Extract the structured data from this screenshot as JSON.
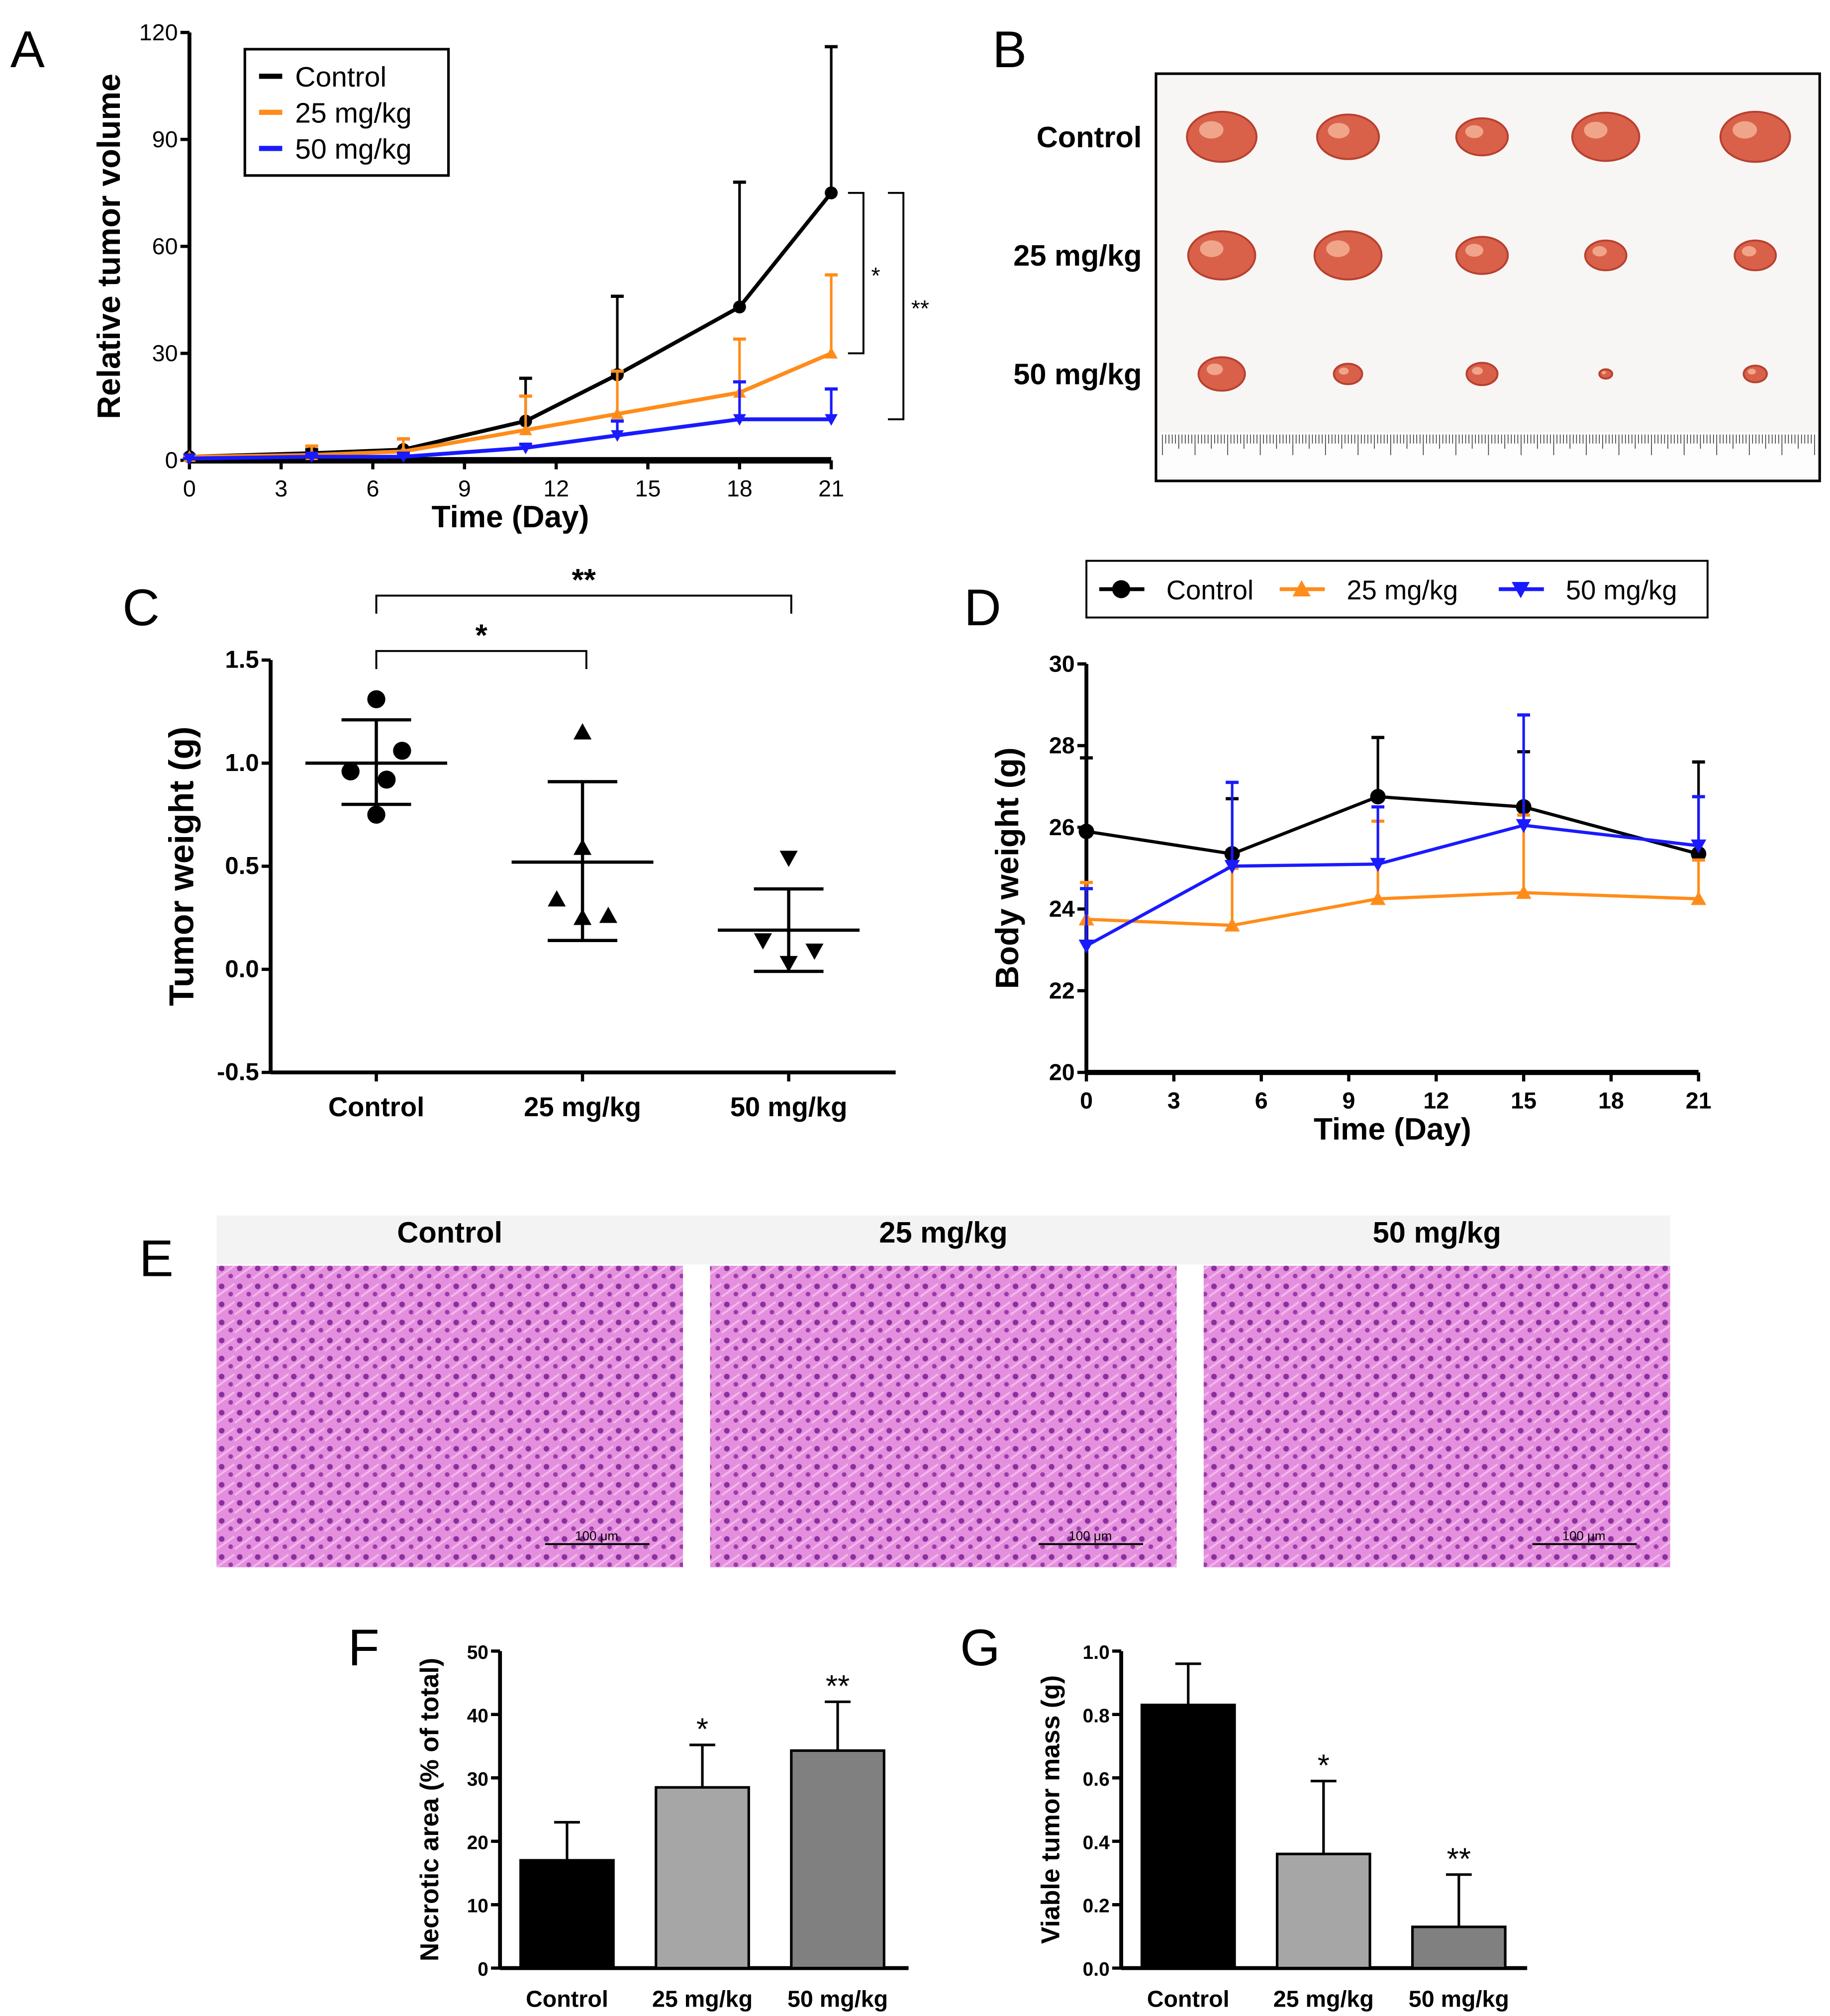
{
  "panel_labels": [
    "A",
    "B",
    "C",
    "D",
    "E",
    "F",
    "G"
  ],
  "colors": {
    "control": "#000000",
    "low": "#ff8c1a",
    "high": "#1a1aff",
    "bar_control": "#000000",
    "bar_low": "#a6a6a6",
    "bar_high": "#808080",
    "tissue": "#d96fd0"
  },
  "photo_b": {
    "rows": [
      "Control",
      "25 mg/kg",
      "50 mg/kg"
    ]
  },
  "photo_e": {
    "titles": [
      "Control",
      "25 mg/kg",
      "50 mg/kg"
    ],
    "scale_bar": "100 μm"
  },
  "chart_data": [
    {
      "id": "A",
      "type": "line",
      "xlabel": "Time (Day)",
      "ylabel": "Relative tumor volume",
      "xlim": [
        0,
        21
      ],
      "xticks": [
        "0",
        "3",
        "6",
        "9",
        "12",
        "15",
        "18",
        "21"
      ],
      "ylim": [
        0,
        120
      ],
      "yticks": [
        "0",
        "30",
        "60",
        "90",
        "120"
      ],
      "legend": {
        "placement": "top-left",
        "entries": [
          "Control",
          "25 mg/kg",
          "50 mg/kg"
        ]
      },
      "series": [
        {
          "name": "Control",
          "color_key": "control",
          "x": [
            0,
            4,
            7,
            11,
            14,
            18,
            21
          ],
          "y": [
            1,
            2,
            3,
            11,
            24,
            43,
            75
          ],
          "err_top": [
            1,
            3,
            6,
            23,
            46,
            78,
            116
          ]
        },
        {
          "name": "25 mg/kg",
          "color_key": "low",
          "x": [
            0,
            4,
            7,
            11,
            14,
            18,
            21
          ],
          "y": [
            1,
            1.5,
            2.5,
            8.5,
            13,
            19,
            30
          ],
          "err_top": [
            1,
            4,
            6,
            18,
            25,
            34,
            52
          ]
        },
        {
          "name": "50 mg/kg",
          "color_key": "high",
          "x": [
            0,
            4,
            7,
            11,
            14,
            18,
            21
          ],
          "y": [
            0.5,
            1,
            1,
            3.5,
            7,
            11.5,
            11.5
          ],
          "err_top": [
            0.5,
            1.5,
            2,
            4.5,
            11,
            22,
            20
          ]
        }
      ],
      "annotations": [
        {
          "text": "*",
          "from": 75,
          "to": 30
        },
        {
          "text": "**",
          "from": 75,
          "to": 11.5
        }
      ]
    },
    {
      "id": "C",
      "type": "scatter",
      "ylabel": "Tumor weight (g)",
      "ylim": [
        -0.5,
        1.5
      ],
      "yticks": [
        "-0.5",
        "0.0",
        "0.5",
        "1.0",
        "1.5"
      ],
      "categories": [
        "Control",
        "25 mg/kg",
        "50 mg/kg"
      ],
      "groups": [
        {
          "points": [
            1.31,
            1.06,
            0.96,
            0.92,
            0.75
          ],
          "offsets": [
            0,
            1,
            -1,
            0.4,
            0
          ],
          "mean": 1.0,
          "sd_low": 0.8,
          "sd_high": 1.21,
          "marker": "circle"
        },
        {
          "points": [
            1.15,
            0.59,
            0.34,
            0.26,
            0.25
          ],
          "offsets": [
            0,
            0,
            -1,
            1,
            0
          ],
          "mean": 0.52,
          "sd_low": 0.14,
          "sd_high": 0.91,
          "marker": "triangle-up"
        },
        {
          "points": [
            0.54,
            0.14,
            0.09,
            0.03
          ],
          "offsets": [
            0,
            -1,
            1,
            0
          ],
          "mean": 0.19,
          "sd_low": -0.01,
          "sd_high": 0.39,
          "marker": "triangle-down"
        }
      ],
      "annotations": [
        {
          "text": "*",
          "from": "Control",
          "to": "25 mg/kg"
        },
        {
          "text": "**",
          "from": "Control",
          "to": "50 mg/kg"
        }
      ]
    },
    {
      "id": "D",
      "type": "line",
      "xlabel": "Time (Day)",
      "ylabel": "Body weight (g)",
      "xlim": [
        0,
        21
      ],
      "xticks": [
        "0",
        "3",
        "6",
        "9",
        "12",
        "15",
        "18",
        "21"
      ],
      "ylim": [
        20,
        30
      ],
      "yticks": [
        "20",
        "22",
        "24",
        "26",
        "28",
        "30"
      ],
      "legend": {
        "placement": "top",
        "entries": [
          "Control",
          "25 mg/kg",
          "50 mg/kg"
        ]
      },
      "series": [
        {
          "name": "Control",
          "color_key": "control",
          "x": [
            0,
            5,
            10,
            15,
            21
          ],
          "y": [
            25.9,
            25.35,
            26.75,
            26.5,
            25.35
          ],
          "err_top": [
            27.7,
            26.7,
            28.2,
            27.85,
            27.6
          ]
        },
        {
          "name": "25 mg/kg",
          "color_key": "low",
          "x": [
            0,
            5,
            10,
            15,
            21
          ],
          "y": [
            23.75,
            23.6,
            24.25,
            24.4,
            24.25
          ],
          "err_top": [
            24.65,
            25.0,
            26.15,
            26.3,
            25.2
          ]
        },
        {
          "name": "50 mg/kg",
          "color_key": "high",
          "x": [
            0,
            5,
            10,
            15,
            21
          ],
          "y": [
            23.1,
            25.05,
            25.1,
            26.05,
            25.55
          ],
          "err_top": [
            24.5,
            27.1,
            26.5,
            28.75,
            26.75
          ]
        }
      ]
    },
    {
      "id": "F",
      "type": "bar",
      "ylabel": "Necrotic area (% of total)",
      "ylim": [
        0,
        50
      ],
      "yticks": [
        "0",
        "10",
        "20",
        "30",
        "40",
        "50"
      ],
      "categories": [
        "Control",
        "25 mg/kg",
        "50 mg/kg"
      ],
      "values": [
        17,
        28.5,
        34.3
      ],
      "err_top": [
        23,
        35.2,
        42
      ],
      "labels": [
        "",
        "*",
        "**"
      ]
    },
    {
      "id": "G",
      "type": "bar",
      "ylabel": "Viable tumor mass (g)",
      "ylim": [
        0,
        1.0
      ],
      "yticks": [
        "0.0",
        "0.2",
        "0.4",
        "0.6",
        "0.8",
        "1.0"
      ],
      "categories": [
        "Control",
        "25 mg/kg",
        "50 mg/kg"
      ],
      "values": [
        0.83,
        0.36,
        0.13
      ],
      "err_top": [
        0.96,
        0.59,
        0.295
      ],
      "labels": [
        "",
        "*",
        "**"
      ]
    }
  ]
}
